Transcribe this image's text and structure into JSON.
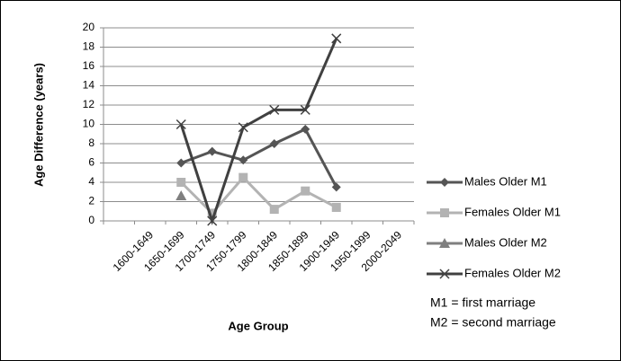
{
  "chart_data": {
    "type": "line",
    "y_label": "Age Difference (years)",
    "x_label": "Age Group",
    "categories": [
      null,
      "1600-1649",
      "1650-1699",
      "1700-1749",
      "1750-1799",
      "1800-1849",
      "1850-1899",
      "1900-1949",
      "1950-1999",
      "2000-2049"
    ],
    "series": [
      {
        "name": "Males  Older M1",
        "color": "#555555",
        "marker": "diamond",
        "values": [
          null,
          null,
          6,
          7.2,
          6.3,
          8,
          9.5,
          3.5,
          null,
          null
        ]
      },
      {
        "name": "Females Older M1",
        "color": "#b3b3b3",
        "marker": "square",
        "values": [
          null,
          null,
          4,
          0.8,
          4.5,
          1.2,
          3.1,
          1.4,
          null,
          null
        ]
      },
      {
        "name": "Males Older M2",
        "color": "#7f7f7f",
        "marker": "triangle",
        "values": [
          null,
          null,
          2.6,
          null,
          null,
          null,
          null,
          null,
          null,
          null
        ]
      },
      {
        "name": "Females Older M2",
        "color": "#404040",
        "marker": "x",
        "values": [
          null,
          null,
          10,
          0,
          9.7,
          11.5,
          11.5,
          18.9,
          null,
          null
        ]
      }
    ],
    "ylim": [
      0,
      20
    ],
    "yticks": [
      0,
      2,
      4,
      6,
      8,
      10,
      12,
      14,
      16,
      18,
      20
    ],
    "grid": true,
    "annotations": [
      "M1 = first marriage",
      "M2 = second marriage"
    ]
  }
}
